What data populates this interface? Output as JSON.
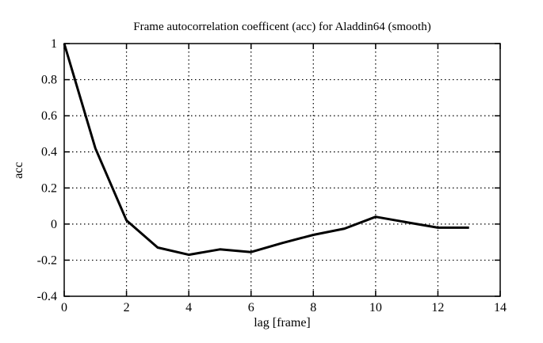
{
  "chart_data": {
    "type": "line",
    "title": "Frame autocorrelation coefficent (acc) for Aladdin64 (smooth)",
    "xlabel": "lag [frame]",
    "ylabel": "acc",
    "xlim": [
      0,
      14
    ],
    "ylim": [
      -0.4,
      1
    ],
    "xticks": [
      0,
      2,
      4,
      6,
      8,
      10,
      12,
      14
    ],
    "yticks": [
      -0.4,
      -0.2,
      0,
      0.2,
      0.4,
      0.6,
      0.8,
      1
    ],
    "grid": true,
    "grid_style": "dotted",
    "legend": "none",
    "line_color": "#000000",
    "background_color": "#ffffff",
    "series": [
      {
        "x": [
          0,
          1,
          2,
          3,
          4,
          5,
          6,
          7,
          8,
          9,
          10,
          11,
          12,
          13
        ],
        "y": [
          1.0,
          0.42,
          0.02,
          -0.13,
          -0.17,
          -0.14,
          -0.155,
          -0.105,
          -0.06,
          -0.025,
          0.04,
          0.01,
          -0.02,
          -0.02
        ]
      }
    ]
  }
}
